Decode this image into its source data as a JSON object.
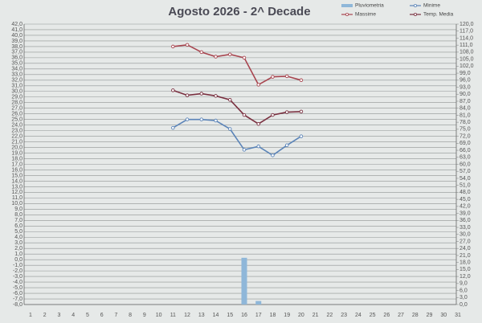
{
  "chart_data": {
    "type": "line",
    "title": "Agosto 2026 - 2^ Decade",
    "categories": [
      "1",
      "2",
      "3",
      "4",
      "5",
      "6",
      "7",
      "8",
      "9",
      "10",
      "11",
      "12",
      "13",
      "14",
      "15",
      "16",
      "17",
      "18",
      "19",
      "20",
      "21",
      "22",
      "23",
      "24",
      "25",
      "26",
      "27",
      "28",
      "29",
      "30",
      "31"
    ],
    "series": [
      {
        "name": "Pluviometria",
        "type": "bar",
        "axis": "y2",
        "color": "#8fb7d9",
        "values": [
          null,
          null,
          null,
          null,
          null,
          null,
          null,
          null,
          null,
          null,
          null,
          null,
          null,
          null,
          null,
          20.0,
          1.5,
          null,
          null,
          null,
          null,
          null,
          null,
          null,
          null,
          null,
          null,
          null,
          null,
          null,
          null
        ]
      },
      {
        "name": "Minime",
        "color": "#5b84b8",
        "values": [
          null,
          null,
          null,
          null,
          null,
          null,
          null,
          null,
          null,
          null,
          23.5,
          25.0,
          25.0,
          24.8,
          23.3,
          19.6,
          20.2,
          18.6,
          20.4,
          22.0,
          null,
          null,
          null,
          null,
          null,
          null,
          null,
          null,
          null,
          null,
          null
        ]
      },
      {
        "name": "Massime",
        "color": "#a8454f",
        "values": [
          null,
          null,
          null,
          null,
          null,
          null,
          null,
          null,
          null,
          null,
          38.0,
          38.3,
          37.0,
          36.2,
          36.6,
          36.0,
          31.2,
          32.6,
          32.7,
          32.0,
          null,
          null,
          null,
          null,
          null,
          null,
          null,
          null,
          null,
          null,
          null
        ]
      },
      {
        "name": "Temp. Media",
        "color": "#7a3040",
        "values": [
          null,
          null,
          null,
          null,
          null,
          null,
          null,
          null,
          null,
          null,
          30.2,
          29.3,
          29.6,
          29.2,
          28.5,
          25.8,
          24.2,
          25.8,
          26.3,
          26.4,
          null,
          null,
          null,
          null,
          null,
          null,
          null,
          null,
          null,
          null,
          null
        ]
      }
    ],
    "ylim": [
      -8,
      42
    ],
    "yticks": [
      {
        "value": -8,
        "label": "-8,0"
      },
      {
        "value": -7,
        "label": "-7,0"
      },
      {
        "value": -6,
        "label": "-6,0"
      },
      {
        "value": -5,
        "label": "-5,0"
      },
      {
        "value": -4,
        "label": "-4,0"
      },
      {
        "value": -3,
        "label": "-3,0"
      },
      {
        "value": -2,
        "label": "-2,0"
      },
      {
        "value": -1,
        "label": "-1,0"
      },
      {
        "value": 0,
        "label": "0,0"
      },
      {
        "value": 1,
        "label": "1,0"
      },
      {
        "value": 2,
        "label": "2,0"
      },
      {
        "value": 3,
        "label": "3,0"
      },
      {
        "value": 4,
        "label": "4,0"
      },
      {
        "value": 5,
        "label": "5,0"
      },
      {
        "value": 6,
        "label": "6,0"
      },
      {
        "value": 7,
        "label": "7,0"
      },
      {
        "value": 8,
        "label": "8,0"
      },
      {
        "value": 9,
        "label": "9,0"
      },
      {
        "value": 10,
        "label": "10,0"
      },
      {
        "value": 11,
        "label": "11,0"
      },
      {
        "value": 12,
        "label": "12,0"
      },
      {
        "value": 13,
        "label": "13,0"
      },
      {
        "value": 14,
        "label": "14,0"
      },
      {
        "value": 15,
        "label": "15,0"
      },
      {
        "value": 16,
        "label": "16,0"
      },
      {
        "value": 17,
        "label": "17,0"
      },
      {
        "value": 18,
        "label": "18,0"
      },
      {
        "value": 19,
        "label": "19,0"
      },
      {
        "value": 20,
        "label": "20,0"
      },
      {
        "value": 21,
        "label": "21,0"
      },
      {
        "value": 22,
        "label": "22,0"
      },
      {
        "value": 23,
        "label": "23,0"
      },
      {
        "value": 24,
        "label": "24,0"
      },
      {
        "value": 25,
        "label": "25,0"
      },
      {
        "value": 26,
        "label": "26,0"
      },
      {
        "value": 27,
        "label": "27,0"
      },
      {
        "value": 28,
        "label": "28,0"
      },
      {
        "value": 29,
        "label": "29,0"
      },
      {
        "value": 30,
        "label": "30,0"
      },
      {
        "value": 31,
        "label": "31,0"
      },
      {
        "value": 32,
        "label": "32,0"
      },
      {
        "value": 33,
        "label": "33,0"
      },
      {
        "value": 34,
        "label": "34,0"
      },
      {
        "value": 35,
        "label": "35,0"
      },
      {
        "value": 36,
        "label": "36,0"
      },
      {
        "value": 37,
        "label": "37,0"
      },
      {
        "value": 38,
        "label": "38,0"
      },
      {
        "value": 39,
        "label": "39,0"
      },
      {
        "value": 40,
        "label": "40,0"
      },
      {
        "value": 41,
        "label": "41,0"
      },
      {
        "value": 42,
        "label": "42,0"
      }
    ],
    "y2lim": [
      0,
      120
    ],
    "y2ticks": [
      {
        "value": 0,
        "label": "0,0"
      },
      {
        "value": 3,
        "label": "3,0"
      },
      {
        "value": 6,
        "label": "6,0"
      },
      {
        "value": 9,
        "label": "9,0"
      },
      {
        "value": 12,
        "label": "12,0"
      },
      {
        "value": 15,
        "label": "15,0"
      },
      {
        "value": 18,
        "label": "18,0"
      },
      {
        "value": 21,
        "label": "21,0"
      },
      {
        "value": 24,
        "label": "24,0"
      },
      {
        "value": 27,
        "label": "27,0"
      },
      {
        "value": 30,
        "label": "30,0"
      },
      {
        "value": 33,
        "label": "33,0"
      },
      {
        "value": 36,
        "label": "36,0"
      },
      {
        "value": 39,
        "label": "39,0"
      },
      {
        "value": 42,
        "label": "42,0"
      },
      {
        "value": 45,
        "label": "45,0"
      },
      {
        "value": 48,
        "label": "48,0"
      },
      {
        "value": 51,
        "label": "51,0"
      },
      {
        "value": 54,
        "label": "54,0"
      },
      {
        "value": 57,
        "label": "57,0"
      },
      {
        "value": 60,
        "label": "60,0"
      },
      {
        "value": 63,
        "label": "63,0"
      },
      {
        "value": 66,
        "label": "66,0"
      },
      {
        "value": 69,
        "label": "69,0"
      },
      {
        "value": 72,
        "label": "72,0"
      },
      {
        "value": 75,
        "label": "75,0"
      },
      {
        "value": 78,
        "label": "78,0"
      },
      {
        "value": 81,
        "label": "81,0"
      },
      {
        "value": 84,
        "label": "84,0"
      },
      {
        "value": 87,
        "label": "87,0"
      },
      {
        "value": 90,
        "label": "90,0"
      },
      {
        "value": 93,
        "label": "93,0"
      },
      {
        "value": 96,
        "label": "96,0"
      },
      {
        "value": 99,
        "label": "99,0"
      },
      {
        "value": 102,
        "label": "102,0"
      },
      {
        "value": 105,
        "label": "105,0"
      },
      {
        "value": 108,
        "label": "108,0"
      },
      {
        "value": 111,
        "label": "111,0"
      },
      {
        "value": 114,
        "label": "114,0"
      },
      {
        "value": 117,
        "label": "117,0"
      },
      {
        "value": 120,
        "label": "120,0"
      }
    ],
    "grid": true,
    "legend": "top-right"
  }
}
